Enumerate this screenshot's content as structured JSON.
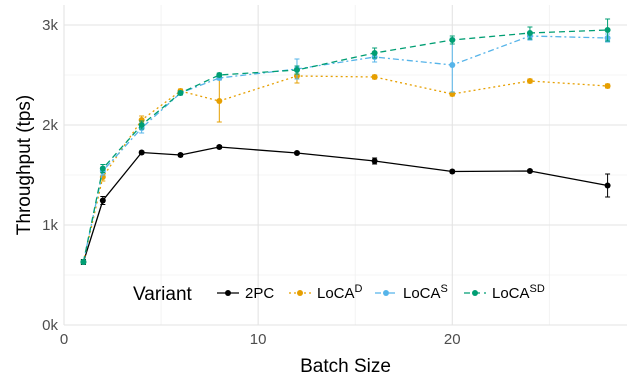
{
  "chart_data": {
    "type": "line",
    "xlabel": "Batch Size",
    "ylabel": "Throughput (tps)",
    "xlim": [
      0,
      29
    ],
    "ylim": [
      0,
      3200
    ],
    "x_ticks": [
      0,
      10,
      20
    ],
    "x_tick_labels": [
      "0",
      "10",
      "20"
    ],
    "y_ticks": [
      0,
      1000,
      2000,
      3000
    ],
    "y_tick_labels": [
      "0k",
      "1k",
      "2k",
      "3k"
    ],
    "grid": true,
    "legend": {
      "title": "Variant",
      "placement": "bottom-inside",
      "entries": [
        {
          "base": "2PC",
          "sup": ""
        },
        {
          "base": "LoCA",
          "sup": "D"
        },
        {
          "base": "LoCA",
          "sup": "S"
        },
        {
          "base": "LoCA",
          "sup": "SD"
        }
      ]
    },
    "series": [
      {
        "color": "#000000",
        "dash": "solid",
        "points": [
          {
            "x": 1,
            "y": 630,
            "err": 25
          },
          {
            "x": 2,
            "y": 1245,
            "err": 40
          },
          {
            "x": 4,
            "y": 1725,
            "err": 15
          },
          {
            "x": 6,
            "y": 1700,
            "err": 15
          },
          {
            "x": 8,
            "y": 1780,
            "err": 15
          },
          {
            "x": 12,
            "y": 1720,
            "err": 15
          },
          {
            "x": 16,
            "y": 1640,
            "err": 30
          },
          {
            "x": 20,
            "y": 1535,
            "err": 15
          },
          {
            "x": 24,
            "y": 1540,
            "err": 15
          },
          {
            "x": 28,
            "y": 1395,
            "err": 115
          }
        ]
      },
      {
        "color": "#E69F00",
        "dash": "dotted",
        "points": [
          {
            "x": 1,
            "y": 630,
            "err": 20
          },
          {
            "x": 2,
            "y": 1480,
            "err": 40
          },
          {
            "x": 4,
            "y": 2050,
            "err": 40
          },
          {
            "x": 6,
            "y": 2340,
            "err": 20
          },
          {
            "x": 8,
            "y": 2240,
            "err": 210
          },
          {
            "x": 12,
            "y": 2490,
            "err": 70
          },
          {
            "x": 16,
            "y": 2480,
            "err": 20
          },
          {
            "x": 20,
            "y": 2310,
            "err": 20
          },
          {
            "x": 24,
            "y": 2440,
            "err": 20
          },
          {
            "x": 28,
            "y": 2390,
            "err": 20
          }
        ]
      },
      {
        "color": "#56B4E9",
        "dash": "dashdot",
        "points": [
          {
            "x": 1,
            "y": 630,
            "err": 20
          },
          {
            "x": 2,
            "y": 1540,
            "err": 40
          },
          {
            "x": 4,
            "y": 1970,
            "err": 50
          },
          {
            "x": 6,
            "y": 2320,
            "err": 20
          },
          {
            "x": 8,
            "y": 2470,
            "err": 20
          },
          {
            "x": 12,
            "y": 2560,
            "err": 100
          },
          {
            "x": 16,
            "y": 2680,
            "err": 50
          },
          {
            "x": 20,
            "y": 2600,
            "err": 270
          },
          {
            "x": 24,
            "y": 2890,
            "err": 40
          },
          {
            "x": 28,
            "y": 2870,
            "err": 40
          }
        ]
      },
      {
        "color": "#009E73",
        "dash": "dashed",
        "points": [
          {
            "x": 1,
            "y": 630,
            "err": 20
          },
          {
            "x": 2,
            "y": 1565,
            "err": 40
          },
          {
            "x": 4,
            "y": 2000,
            "err": 40
          },
          {
            "x": 6,
            "y": 2320,
            "err": 20
          },
          {
            "x": 8,
            "y": 2500,
            "err": 20
          },
          {
            "x": 12,
            "y": 2550,
            "err": 40
          },
          {
            "x": 16,
            "y": 2720,
            "err": 50
          },
          {
            "x": 20,
            "y": 2850,
            "err": 40
          },
          {
            "x": 24,
            "y": 2920,
            "err": 60
          },
          {
            "x": 28,
            "y": 2950,
            "err": 110
          }
        ]
      }
    ]
  }
}
